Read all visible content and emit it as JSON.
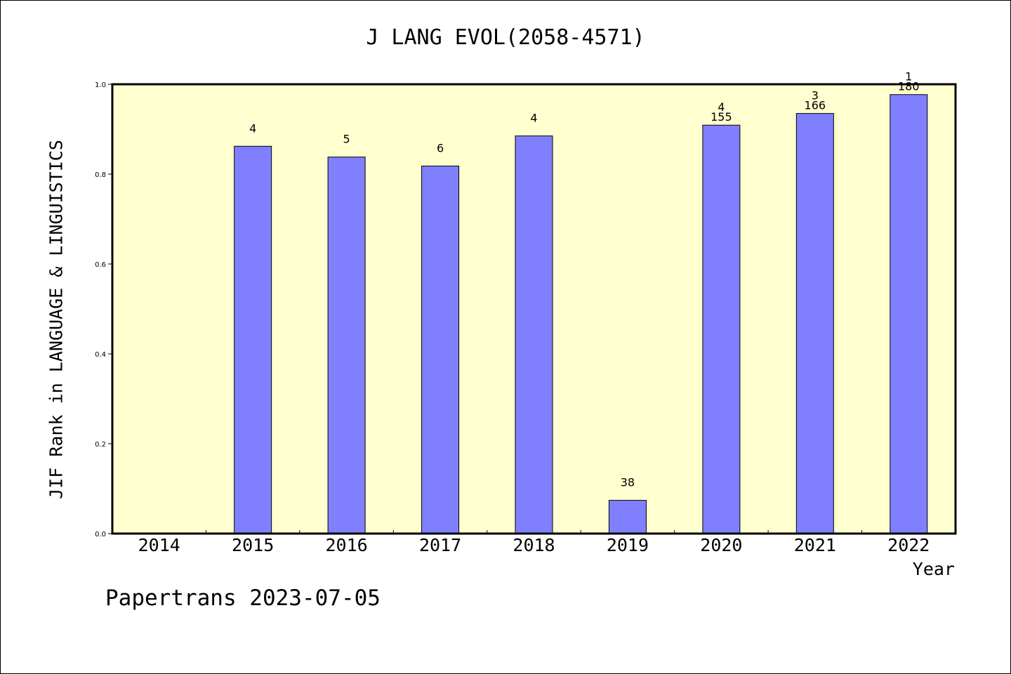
{
  "footer": {
    "watermark": "Papertrans 2023-07-05"
  },
  "chart_data": {
    "type": "bar",
    "title": "J LANG EVOL(2058-4571)",
    "xlabel": "Year",
    "ylabel": "JIF Rank in LANGUAGE & LINGUISTICS",
    "ylim": [
      0.0,
      1.0
    ],
    "yticks": [
      "0.0",
      "0.2",
      "0.4",
      "0.6",
      "0.8",
      "1.0"
    ],
    "categories": [
      "2014",
      "2015",
      "2016",
      "2017",
      "2018",
      "2019",
      "2020",
      "2021",
      "2022"
    ],
    "values": [
      null,
      0.862,
      0.838,
      0.818,
      0.885,
      0.074,
      0.909,
      0.935,
      0.977
    ],
    "rank_labels": [
      "",
      "4",
      "5",
      "6",
      "4",
      "38",
      "4",
      "3",
      "1"
    ],
    "total_labels": [
      "",
      "",
      "",
      "",
      "",
      "",
      "155",
      "166",
      "180"
    ],
    "colors": {
      "bar": "#8080ff",
      "plot_background": "#ffffd0",
      "axis": "#000000"
    },
    "grid": false,
    "legend": "none"
  }
}
